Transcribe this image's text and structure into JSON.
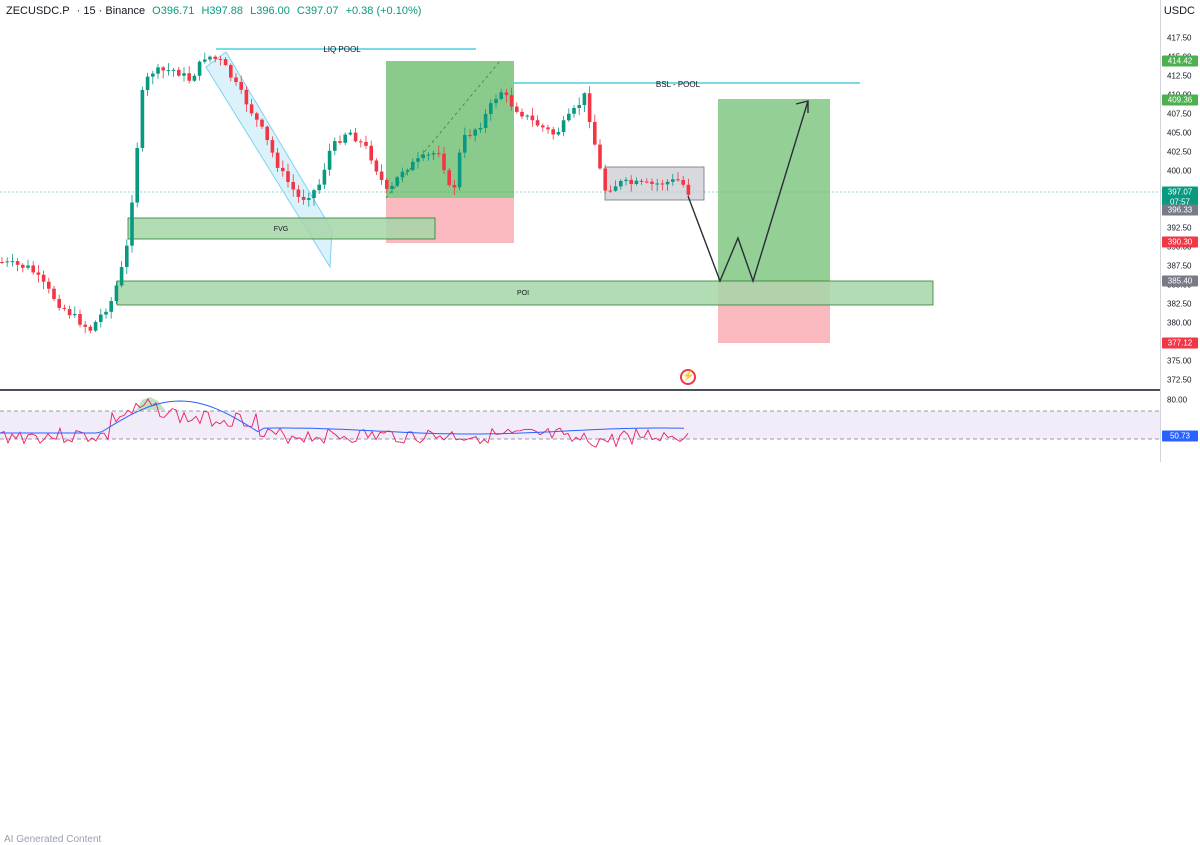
{
  "legend": {
    "symbol": "ZECUSDC.P",
    "interval": "· 15 · Binance",
    "open": "O396.71",
    "high": "H397.88",
    "low": "L396.00",
    "close": "C397.07",
    "change": "+0.38 (+0.10%)"
  },
  "currency": "USDC",
  "annotations": {
    "liq_pool": "LIQ POOL",
    "bsl_pool": "BSL - POOL",
    "fvg": "FVG",
    "poi": "POI"
  },
  "price_ticks": [
    "417.50",
    "415.00",
    "412.50",
    "410.00",
    "407.50",
    "405.00",
    "402.50",
    "400.00",
    "397.50",
    "395.00",
    "392.50",
    "390.00",
    "387.50",
    "385.00",
    "382.50",
    "380.00",
    "377.50",
    "375.00",
    "372.50"
  ],
  "price_tags": {
    "tp": "414.42",
    "tp2": "409.36",
    "last": "397.07",
    "countdown": "07:57",
    "entry_low": "396.33",
    "sl_red": "390.30",
    "poi_level": "385.40",
    "sl": "377.12"
  },
  "rsi_ticks": [
    "80.00",
    "50.73"
  ],
  "watermark": "AI Generated Content",
  "colors": {
    "up": "#089981",
    "down": "#f23645",
    "zone_green": "#4caf50",
    "zone_red": "#f7525f",
    "liq_line": "#26c6da",
    "channel": "#7dd3f0",
    "rsi_line": "#e91e63",
    "rsi_ma": "#2962ff"
  }
}
